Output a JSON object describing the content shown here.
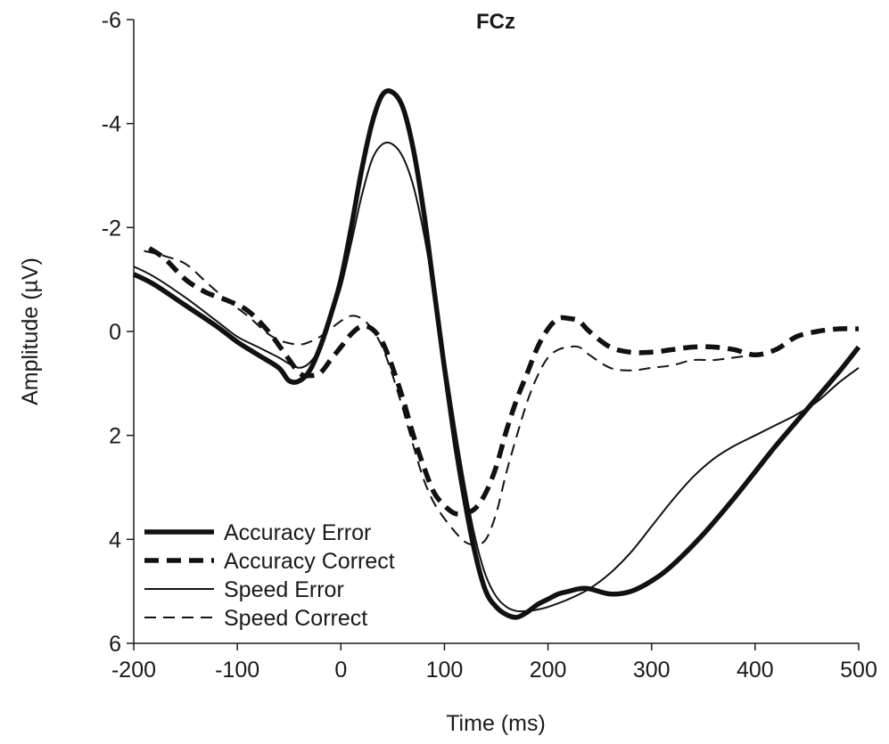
{
  "chart_data": {
    "type": "line",
    "title": "FCz",
    "xlabel": "Time (ms)",
    "ylabel": "Amplitude (µV)",
    "xlim": [
      -200,
      500
    ],
    "ylim": [
      -6,
      6
    ],
    "y_inverted": true,
    "grid": false,
    "legend_position": "bottom-left",
    "x_ticks": [
      -200,
      -100,
      0,
      100,
      200,
      300,
      400,
      500
    ],
    "x_tick_labels": [
      "-200",
      "-100",
      "0",
      "100",
      "200",
      "300",
      "400",
      "500"
    ],
    "y_ticks": [
      -6,
      -4,
      -2,
      0,
      2,
      4,
      6
    ],
    "y_tick_labels": [
      "-6",
      "-4",
      "-2",
      "0",
      "2",
      "4",
      "6"
    ],
    "series": [
      {
        "name": "Accuracy Error",
        "style": "thick-solid",
        "color": "#111111",
        "x": [
          -200,
          -180,
          -150,
          -120,
          -100,
          -80,
          -60,
          -50,
          -40,
          -30,
          -20,
          -10,
          0,
          10,
          20,
          30,
          40,
          50,
          60,
          70,
          80,
          90,
          100,
          110,
          120,
          130,
          140,
          150,
          160,
          170,
          180,
          190,
          200,
          210,
          220,
          230,
          240,
          260,
          280,
          300,
          320,
          350,
          380,
          400,
          420,
          450,
          480,
          500
        ],
        "y": [
          -1.1,
          -0.9,
          -0.5,
          -0.1,
          0.2,
          0.45,
          0.7,
          0.95,
          0.95,
          0.75,
          0.3,
          -0.3,
          -1.0,
          -2.0,
          -3.1,
          -4.0,
          -4.55,
          -4.6,
          -4.3,
          -3.5,
          -2.3,
          -0.8,
          0.7,
          2.1,
          3.3,
          4.3,
          5.0,
          5.3,
          5.45,
          5.5,
          5.4,
          5.25,
          5.15,
          5.05,
          5.0,
          4.95,
          4.95,
          5.05,
          5.0,
          4.8,
          4.5,
          3.9,
          3.2,
          2.7,
          2.2,
          1.5,
          0.8,
          0.3
        ]
      },
      {
        "name": "Accuracy Correct",
        "style": "thick-dashed",
        "color": "#111111",
        "x": [
          -185,
          -170,
          -150,
          -130,
          -110,
          -90,
          -70,
          -55,
          -40,
          -30,
          -20,
          -10,
          0,
          10,
          20,
          30,
          40,
          50,
          60,
          70,
          80,
          90,
          100,
          110,
          120,
          130,
          140,
          150,
          160,
          170,
          180,
          190,
          200,
          210,
          220,
          230,
          240,
          260,
          280,
          300,
          320,
          340,
          360,
          380,
          400,
          420,
          440,
          460,
          480,
          500
        ],
        "y": [
          -1.6,
          -1.4,
          -1.0,
          -0.75,
          -0.6,
          -0.4,
          0.0,
          0.4,
          0.8,
          0.85,
          0.8,
          0.55,
          0.3,
          0.05,
          -0.1,
          -0.05,
          0.2,
          0.7,
          1.3,
          2.0,
          2.6,
          3.1,
          3.35,
          3.5,
          3.5,
          3.4,
          3.1,
          2.6,
          1.9,
          1.3,
          0.8,
          0.3,
          -0.05,
          -0.25,
          -0.25,
          -0.2,
          0.0,
          0.3,
          0.4,
          0.4,
          0.35,
          0.3,
          0.3,
          0.35,
          0.45,
          0.35,
          0.1,
          0.0,
          -0.05,
          -0.05
        ]
      },
      {
        "name": "Speed Error",
        "style": "thin-solid",
        "color": "#111111",
        "x": [
          -200,
          -180,
          -150,
          -120,
          -100,
          -80,
          -60,
          -50,
          -40,
          -30,
          -20,
          -10,
          0,
          10,
          20,
          30,
          40,
          50,
          60,
          70,
          80,
          90,
          100,
          110,
          120,
          130,
          140,
          150,
          160,
          170,
          180,
          190,
          200,
          220,
          240,
          260,
          280,
          300,
          320,
          340,
          360,
          380,
          400,
          420,
          440,
          460,
          480,
          500
        ],
        "y": [
          -1.25,
          -1.05,
          -0.65,
          -0.2,
          0.1,
          0.3,
          0.5,
          0.62,
          0.7,
          0.6,
          0.3,
          -0.25,
          -0.85,
          -1.7,
          -2.6,
          -3.3,
          -3.6,
          -3.6,
          -3.35,
          -2.8,
          -1.9,
          -0.75,
          0.5,
          1.8,
          3.0,
          4.0,
          4.7,
          5.1,
          5.3,
          5.38,
          5.38,
          5.35,
          5.3,
          5.15,
          4.95,
          4.65,
          4.25,
          3.75,
          3.25,
          2.8,
          2.45,
          2.2,
          2.0,
          1.8,
          1.6,
          1.35,
          1.0,
          0.7
        ]
      },
      {
        "name": "Speed Correct",
        "style": "thin-dashed",
        "color": "#111111",
        "x": [
          -190,
          -170,
          -150,
          -130,
          -110,
          -90,
          -70,
          -55,
          -40,
          -30,
          -20,
          -10,
          0,
          10,
          20,
          30,
          40,
          50,
          60,
          70,
          80,
          90,
          100,
          110,
          120,
          130,
          140,
          150,
          160,
          170,
          180,
          190,
          200,
          210,
          220,
          230,
          240,
          260,
          280,
          300,
          320,
          340,
          360,
          380,
          400
        ],
        "y": [
          -1.55,
          -1.45,
          -1.3,
          -0.95,
          -0.6,
          -0.3,
          0.05,
          0.2,
          0.25,
          0.2,
          0.1,
          -0.05,
          -0.2,
          -0.3,
          -0.25,
          -0.05,
          0.3,
          0.85,
          1.5,
          2.2,
          2.85,
          3.3,
          3.6,
          3.85,
          4.05,
          4.1,
          4.0,
          3.5,
          2.7,
          2.0,
          1.35,
          0.85,
          0.5,
          0.35,
          0.3,
          0.3,
          0.45,
          0.7,
          0.75,
          0.7,
          0.65,
          0.55,
          0.55,
          0.5,
          0.45
        ]
      }
    ]
  }
}
